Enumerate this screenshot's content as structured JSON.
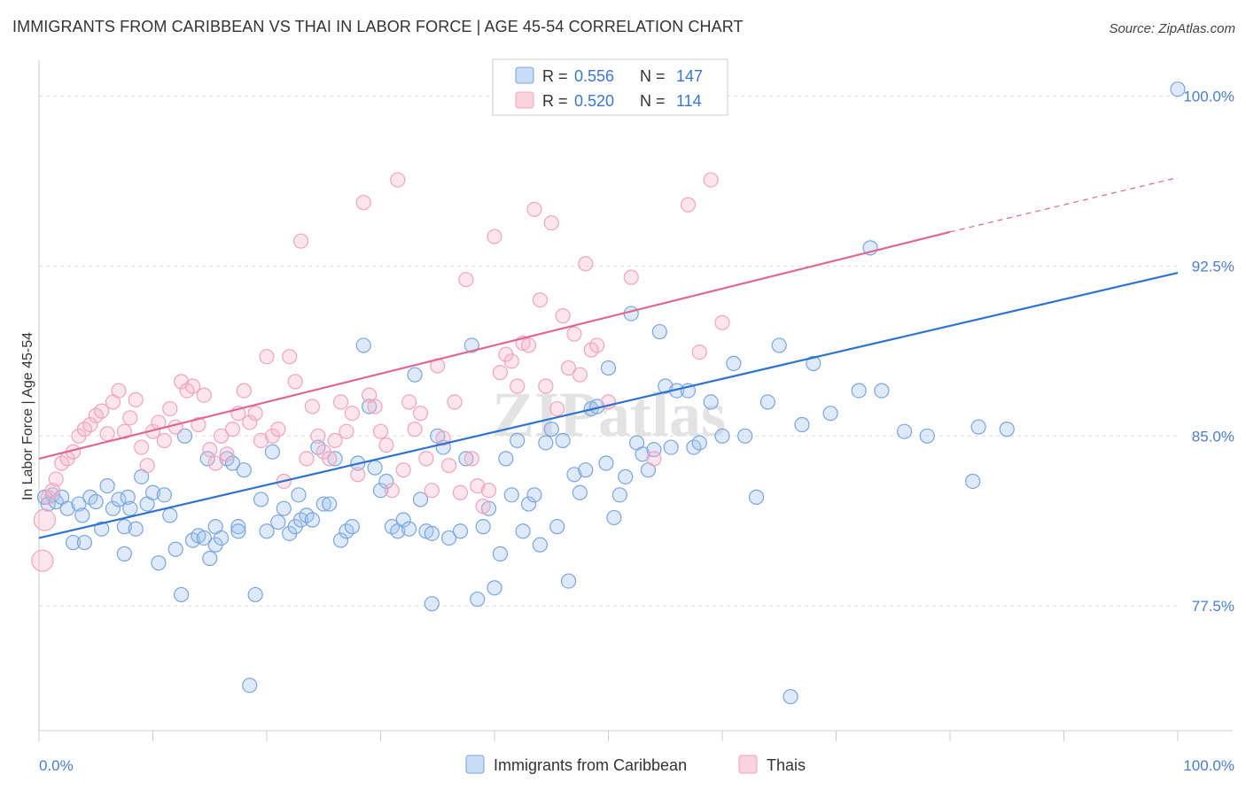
{
  "header": {
    "title": "IMMIGRANTS FROM CARIBBEAN VS THAI IN LABOR FORCE | AGE 45-54 CORRELATION CHART",
    "source": "Source: ZipAtlas.com"
  },
  "watermark": "ZIPatlas",
  "colors": {
    "blue": "#7aa6e0",
    "blue_line": "#2f72d0",
    "pink": "#f2a4bd",
    "pink_line": "#e06890",
    "tick_label": "#4a7fd0",
    "grid": "#dddddd"
  },
  "legend_top": {
    "rows": [
      {
        "r_label": "R =",
        "r_value": "0.556",
        "n_label": "N =",
        "n_value": "147"
      },
      {
        "r_label": "R =",
        "r_value": "0.520",
        "n_label": "N =",
        "n_value": "114"
      }
    ]
  },
  "legend_bottom": [
    "Immigrants from Caribbean",
    "Thais"
  ],
  "chart_data": {
    "type": "scatter",
    "title": "IMMIGRANTS FROM CARIBBEAN VS THAI IN LABOR FORCE | AGE 45-54 CORRELATION CHART",
    "xlabel": "",
    "ylabel": "In Labor Force | Age 45-54",
    "xlim": [
      0,
      100
    ],
    "ylim": [
      72.0,
      101.5
    ],
    "x_tick_labels": [
      "0.0%",
      "100.0%"
    ],
    "y_ticks": [
      77.5,
      85.0,
      92.5,
      100.0
    ],
    "y_tick_labels": [
      "77.5%",
      "85.0%",
      "92.5%",
      "100.0%"
    ],
    "grid": true,
    "legend_position": "top-center and bottom",
    "series": [
      {
        "name": "Immigrants from Caribbean",
        "r": 0.556,
        "n": 147,
        "trend": {
          "x0": 0,
          "y0": 80.5,
          "x1": 100,
          "y1": 92.2,
          "dash_from": 100
        },
        "points": [
          [
            0.5,
            82.3
          ],
          [
            0.8,
            82.0
          ],
          [
            1.2,
            82.4
          ],
          [
            1.5,
            82.1
          ],
          [
            2.0,
            82.3
          ],
          [
            2.5,
            81.8
          ],
          [
            3.0,
            80.3
          ],
          [
            3.5,
            82.0
          ],
          [
            3.8,
            81.5
          ],
          [
            4.0,
            80.3
          ],
          [
            4.5,
            82.3
          ],
          [
            5.0,
            82.1
          ],
          [
            5.5,
            80.9
          ],
          [
            6.0,
            82.8
          ],
          [
            6.5,
            81.8
          ],
          [
            7.0,
            82.2
          ],
          [
            7.5,
            81.0
          ],
          [
            7.5,
            79.8
          ],
          [
            7.8,
            82.3
          ],
          [
            8.0,
            81.8
          ],
          [
            8.5,
            80.9
          ],
          [
            9.0,
            83.2
          ],
          [
            9.5,
            82.0
          ],
          [
            10.0,
            82.5
          ],
          [
            10.5,
            79.4
          ],
          [
            11.0,
            82.4
          ],
          [
            11.5,
            81.5
          ],
          [
            12.0,
            80.0
          ],
          [
            12.5,
            78.0
          ],
          [
            12.8,
            85.0
          ],
          [
            13.5,
            80.4
          ],
          [
            14.0,
            80.6
          ],
          [
            14.5,
            80.5
          ],
          [
            14.8,
            84.0
          ],
          [
            15.0,
            79.6
          ],
          [
            15.5,
            80.2
          ],
          [
            15.5,
            81.0
          ],
          [
            16.0,
            80.5
          ],
          [
            16.5,
            84.0
          ],
          [
            17.0,
            83.8
          ],
          [
            17.5,
            81.0
          ],
          [
            17.5,
            80.8
          ],
          [
            18.0,
            83.5
          ],
          [
            18.5,
            74.0
          ],
          [
            19.0,
            78.0
          ],
          [
            19.5,
            82.2
          ],
          [
            20.0,
            80.8
          ],
          [
            20.5,
            84.3
          ],
          [
            21.0,
            81.2
          ],
          [
            21.5,
            81.8
          ],
          [
            22.0,
            80.7
          ],
          [
            22.5,
            81.0
          ],
          [
            22.8,
            82.4
          ],
          [
            23.0,
            81.3
          ],
          [
            23.5,
            81.5
          ],
          [
            24.0,
            81.3
          ],
          [
            24.5,
            84.5
          ],
          [
            25.0,
            82.0
          ],
          [
            25.5,
            82.0
          ],
          [
            26.0,
            84.0
          ],
          [
            26.5,
            80.4
          ],
          [
            27.0,
            80.8
          ],
          [
            27.5,
            81.0
          ],
          [
            28.0,
            83.8
          ],
          [
            28.5,
            89.0
          ],
          [
            29.0,
            86.3
          ],
          [
            29.5,
            83.6
          ],
          [
            30.0,
            82.6
          ],
          [
            30.5,
            83.0
          ],
          [
            31.0,
            81.0
          ],
          [
            31.5,
            80.8
          ],
          [
            32.0,
            81.3
          ],
          [
            32.5,
            80.9
          ],
          [
            33.0,
            87.7
          ],
          [
            33.5,
            82.2
          ],
          [
            34.0,
            80.8
          ],
          [
            34.5,
            80.7
          ],
          [
            34.5,
            77.6
          ],
          [
            35.0,
            85.0
          ],
          [
            35.5,
            84.5
          ],
          [
            36.0,
            80.5
          ],
          [
            37.0,
            80.8
          ],
          [
            37.5,
            84.0
          ],
          [
            38.0,
            89.0
          ],
          [
            38.5,
            77.8
          ],
          [
            39.0,
            81.0
          ],
          [
            39.5,
            81.8
          ],
          [
            40.0,
            78.3
          ],
          [
            40.5,
            79.8
          ],
          [
            41.0,
            84.0
          ],
          [
            41.5,
            82.4
          ],
          [
            42.0,
            84.8
          ],
          [
            42.5,
            80.8
          ],
          [
            43.0,
            82.0
          ],
          [
            43.5,
            82.4
          ],
          [
            44.0,
            80.2
          ],
          [
            44.5,
            84.7
          ],
          [
            45.0,
            85.3
          ],
          [
            45.5,
            81.0
          ],
          [
            46.0,
            84.8
          ],
          [
            46.5,
            78.6
          ],
          [
            47.0,
            83.3
          ],
          [
            47.5,
            82.5
          ],
          [
            48.0,
            83.5
          ],
          [
            48.5,
            86.2
          ],
          [
            49.0,
            86.3
          ],
          [
            49.8,
            83.8
          ],
          [
            50.0,
            88.0
          ],
          [
            50.5,
            81.4
          ],
          [
            51.0,
            82.4
          ],
          [
            51.5,
            83.2
          ],
          [
            52.0,
            90.4
          ],
          [
            52.5,
            84.7
          ],
          [
            53.0,
            84.2
          ],
          [
            53.5,
            83.5
          ],
          [
            54.0,
            84.4
          ],
          [
            54.5,
            89.6
          ],
          [
            55.0,
            87.2
          ],
          [
            55.5,
            84.5
          ],
          [
            56.0,
            87.0
          ],
          [
            57.0,
            87.0
          ],
          [
            57.5,
            84.5
          ],
          [
            58.0,
            84.7
          ],
          [
            59.0,
            86.5
          ],
          [
            60.0,
            85.0
          ],
          [
            61.0,
            88.2
          ],
          [
            62.0,
            85.0
          ],
          [
            63.0,
            82.3
          ],
          [
            64.0,
            86.5
          ],
          [
            65.0,
            89.0
          ],
          [
            66.0,
            73.5
          ],
          [
            67.0,
            85.5
          ],
          [
            68.0,
            88.2
          ],
          [
            69.5,
            86.0
          ],
          [
            72.0,
            87.0
          ],
          [
            73.0,
            93.3
          ],
          [
            74.0,
            87.0
          ],
          [
            76.0,
            85.2
          ],
          [
            78.0,
            85.0
          ],
          [
            82.0,
            83.0
          ],
          [
            82.5,
            85.4
          ],
          [
            85.0,
            85.3
          ],
          [
            100.0,
            100.3
          ]
        ]
      },
      {
        "name": "Thais",
        "r": 0.52,
        "n": 114,
        "trend": {
          "x0": 0,
          "y0": 84.0,
          "x1": 80,
          "y1": 94.0,
          "dash_from": 80,
          "dash_to": 100,
          "dash_y_end": 96.4
        },
        "points": [
          [
            0.3,
            79.5
          ],
          [
            0.5,
            81.3
          ],
          [
            0.8,
            82.3
          ],
          [
            1.2,
            82.6
          ],
          [
            1.5,
            83.1
          ],
          [
            2.0,
            83.8
          ],
          [
            2.5,
            84.0
          ],
          [
            3.0,
            84.3
          ],
          [
            3.5,
            85.0
          ],
          [
            4.0,
            85.3
          ],
          [
            4.5,
            85.5
          ],
          [
            5.0,
            85.9
          ],
          [
            5.5,
            86.1
          ],
          [
            6.0,
            85.1
          ],
          [
            6.5,
            86.5
          ],
          [
            7.0,
            87.0
          ],
          [
            7.5,
            85.2
          ],
          [
            8.0,
            85.8
          ],
          [
            8.5,
            86.6
          ],
          [
            9.0,
            84.5
          ],
          [
            9.5,
            83.7
          ],
          [
            10.0,
            85.2
          ],
          [
            10.5,
            85.6
          ],
          [
            11.0,
            84.8
          ],
          [
            11.5,
            86.2
          ],
          [
            12.0,
            85.4
          ],
          [
            12.5,
            87.4
          ],
          [
            13.0,
            87.0
          ],
          [
            13.5,
            87.2
          ],
          [
            14.0,
            85.5
          ],
          [
            14.5,
            86.8
          ],
          [
            15.0,
            84.4
          ],
          [
            15.5,
            83.8
          ],
          [
            16.0,
            85.0
          ],
          [
            16.5,
            84.2
          ],
          [
            17.0,
            85.3
          ],
          [
            17.5,
            86.0
          ],
          [
            18.0,
            87.0
          ],
          [
            18.5,
            85.6
          ],
          [
            19.0,
            86.0
          ],
          [
            19.5,
            84.8
          ],
          [
            20.0,
            88.5
          ],
          [
            20.5,
            85.0
          ],
          [
            21.0,
            85.3
          ],
          [
            21.5,
            83.0
          ],
          [
            22.0,
            88.5
          ],
          [
            22.5,
            87.4
          ],
          [
            23.0,
            93.6
          ],
          [
            23.5,
            84.0
          ],
          [
            24.0,
            86.3
          ],
          [
            24.5,
            85.0
          ],
          [
            25.0,
            84.3
          ],
          [
            25.5,
            84.0
          ],
          [
            26.0,
            84.8
          ],
          [
            26.5,
            86.5
          ],
          [
            27.0,
            85.2
          ],
          [
            27.5,
            86.0
          ],
          [
            28.0,
            83.3
          ],
          [
            28.5,
            95.3
          ],
          [
            29.0,
            86.8
          ],
          [
            29.5,
            86.3
          ],
          [
            30.0,
            85.2
          ],
          [
            30.5,
            84.6
          ],
          [
            31.0,
            82.6
          ],
          [
            31.5,
            96.3
          ],
          [
            32.0,
            83.5
          ],
          [
            32.5,
            86.5
          ],
          [
            33.0,
            85.3
          ],
          [
            33.5,
            86.0
          ],
          [
            34.0,
            84.0
          ],
          [
            34.5,
            82.6
          ],
          [
            35.0,
            88.1
          ],
          [
            35.5,
            84.9
          ],
          [
            36.0,
            83.7
          ],
          [
            36.5,
            86.5
          ],
          [
            37.0,
            82.5
          ],
          [
            37.5,
            91.9
          ],
          [
            38.0,
            84.0
          ],
          [
            38.5,
            82.8
          ],
          [
            39.0,
            81.9
          ],
          [
            39.5,
            82.6
          ],
          [
            40.0,
            93.8
          ],
          [
            40.5,
            87.8
          ],
          [
            41.0,
            88.6
          ],
          [
            41.5,
            88.3
          ],
          [
            42.0,
            87.2
          ],
          [
            42.5,
            89.1
          ],
          [
            43.0,
            89.0
          ],
          [
            43.5,
            95.0
          ],
          [
            44.0,
            91.0
          ],
          [
            44.5,
            87.2
          ],
          [
            45.0,
            94.4
          ],
          [
            45.5,
            86.2
          ],
          [
            46.0,
            90.3
          ],
          [
            46.5,
            88.0
          ],
          [
            47.0,
            89.5
          ],
          [
            47.5,
            87.7
          ],
          [
            48.0,
            92.6
          ],
          [
            48.5,
            88.8
          ],
          [
            49.0,
            89.0
          ],
          [
            50.0,
            86.5
          ],
          [
            52.0,
            92.0
          ],
          [
            54.0,
            84.0
          ],
          [
            57.0,
            95.2
          ],
          [
            58.0,
            88.7
          ],
          [
            59.0,
            96.3
          ],
          [
            60.0,
            90.0
          ]
        ]
      }
    ]
  }
}
